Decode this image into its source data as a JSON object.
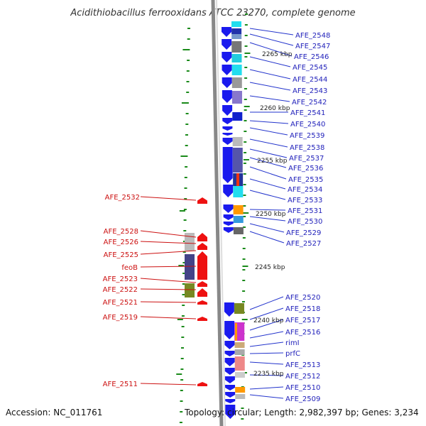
{
  "title": "Acidithiobacillus ferrooxidans ATCC 23270, complete genome",
  "footer": {
    "accession": "Accession: NC_011761",
    "topology": "Topology: circular; Length: 2,982,397 bp; Genes: 3,234"
  },
  "colors": {
    "forward_gene": "#1a1aee",
    "reverse_gene": "#ee1111",
    "forward_label": "#2222bb",
    "reverse_label": "#cc1111",
    "tick": "#1a8a1a",
    "backbone": "#888888"
  },
  "kbp_markers": [
    "2265 kbp",
    "2260 kbp",
    "2255 kbp",
    "2250 kbp",
    "2245 kbp",
    "2240 kbp",
    "2235 kbp"
  ],
  "forward_labels": [
    "AFE_2548",
    "AFE_2547",
    "AFE_2546",
    "AFE_2545",
    "AFE_2544",
    "AFE_2543",
    "AFE_2542",
    "AFE_2541",
    "AFE_2540",
    "AFE_2539",
    "AFE_2538",
    "AFE_2537",
    "AFE_2536",
    "AFE_2535",
    "AFE_2534",
    "AFE_2533",
    "AFE_2531",
    "AFE_2530",
    "AFE_2529",
    "AFE_2527",
    "AFE_2520",
    "AFE_2518",
    "AFE_2517",
    "AFE_2516",
    "rimI",
    "prfC",
    "AFE_2513",
    "AFE_2512",
    "AFE_2510",
    "AFE_2509"
  ],
  "reverse_labels": [
    "AFE_2532",
    "AFE_2528",
    "AFE_2526",
    "AFE_2525",
    "feoB",
    "AFE_2523",
    "AFE_2522",
    "AFE_2521",
    "AFE_2519",
    "AFE_2511"
  ]
}
